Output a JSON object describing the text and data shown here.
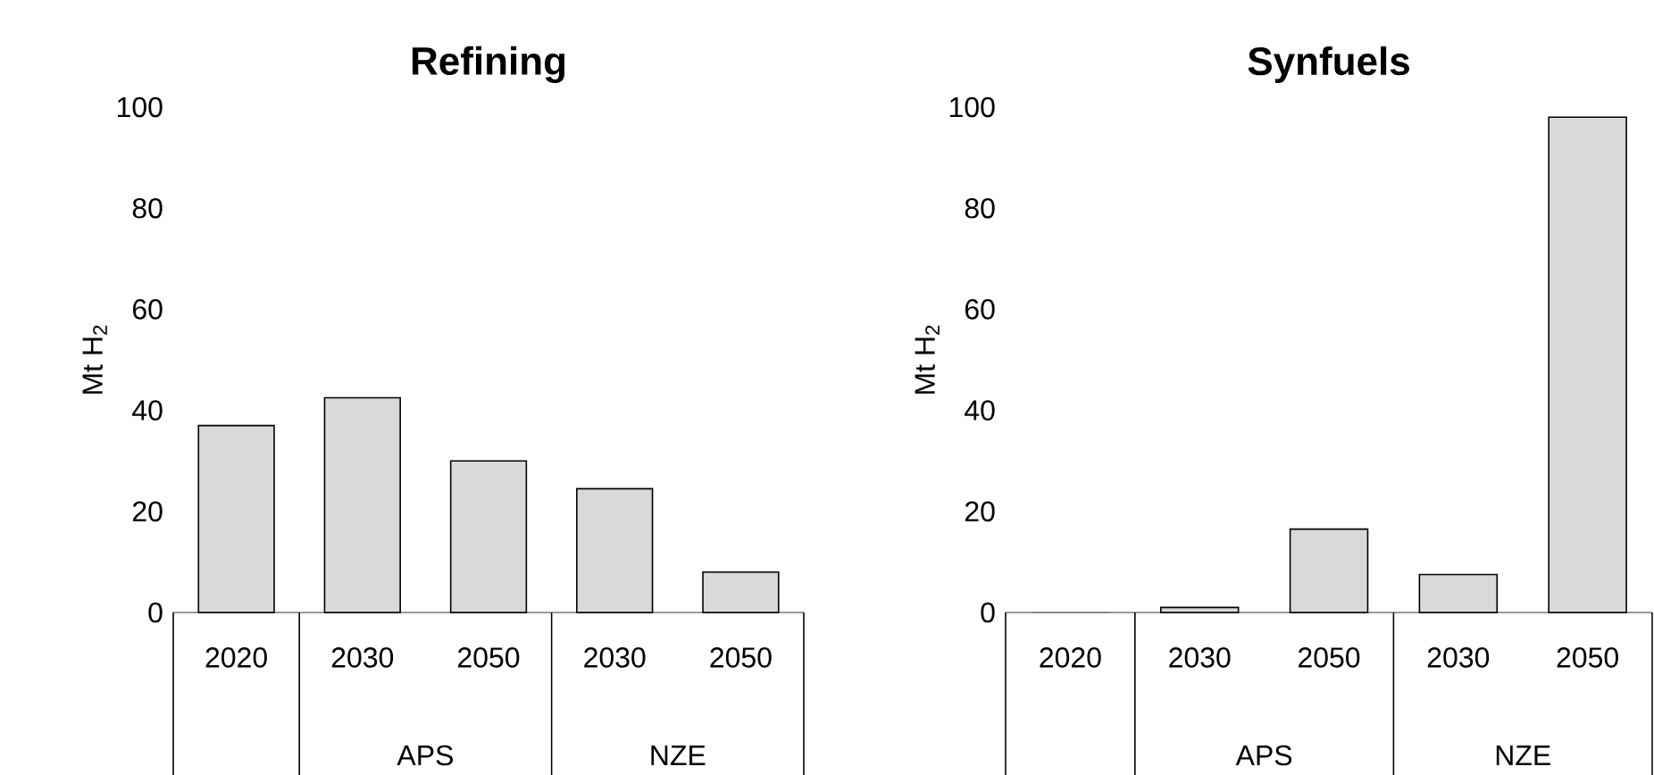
{
  "chart_data": [
    {
      "type": "bar",
      "title": "Refining",
      "ylabel": "Mt H$_{2}$",
      "categories": [
        "2020",
        "2030",
        "2050",
        "2030",
        "2050"
      ],
      "values": [
        37,
        42.5,
        30,
        24.5,
        8
      ],
      "color": "#d9d9d9",
      "ylim": [
        0,
        100
      ],
      "yticks": [
        0,
        20,
        40,
        60,
        80,
        100
      ],
      "annotations": [
        "APS",
        "NZE"
      ]
    },
    {
      "type": "bar",
      "title": "Synfuels",
      "ylabel": "Mt H$_{2}$",
      "categories": [
        "2020",
        "2030",
        "2050",
        "2030",
        "2050"
      ],
      "values": [
        0,
        1,
        16.5,
        7.5,
        98
      ],
      "color": "#d9d9d9",
      "ylim": [
        0,
        100
      ],
      "yticks": [
        0,
        20,
        40,
        60,
        80,
        100
      ],
      "annotations": [
        "APS",
        "NZE"
      ]
    }
  ]
}
